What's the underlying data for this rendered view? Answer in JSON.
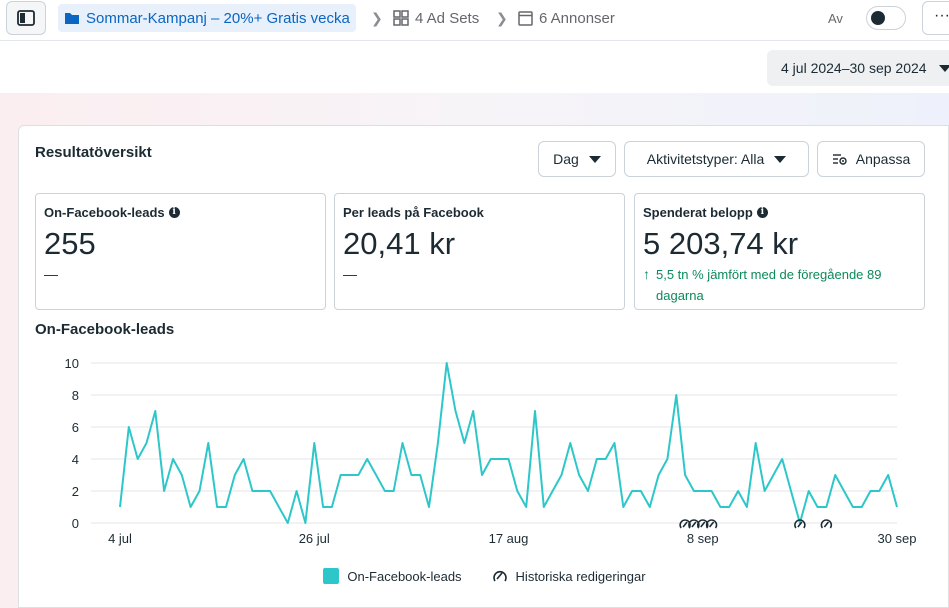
{
  "topbar": {
    "campaign": "Sommar-Kampanj – 20%+ Gratis vecka",
    "adsets": "4 Ad Sets",
    "ads": "6 Annonser",
    "toggle_label": "Av",
    "more": "···"
  },
  "date_range": "4 jul 2024–30 sep 2024",
  "card": {
    "title": "Resultatöversikt",
    "period_select": "Dag",
    "activity_select": "Aktivitetstyper: Alla",
    "customize": "Anpassa"
  },
  "metrics": [
    {
      "label": "On-Facebook-leads",
      "value": "255",
      "change": "—"
    },
    {
      "label": "Per leads på Facebook",
      "value": "20,41 kr",
      "change": "—"
    },
    {
      "label": "Spenderat belopp",
      "value": "5 203,74 kr",
      "change": "5,5 tn % jämfört med de föregående 89 dagarna"
    }
  ],
  "chart_data": {
    "type": "line",
    "title": "On-Facebook-leads",
    "x_ticks": [
      "4 jul",
      "26 jul",
      "17 aug",
      "8 sep",
      "30 sep"
    ],
    "y_ticks": [
      "0",
      "2",
      "4",
      "6",
      "8",
      "10"
    ],
    "ylim": [
      0,
      10
    ],
    "grid": true,
    "series": [
      {
        "name": "On-Facebook-leads",
        "color": "#2ec7c9",
        "values": [
          1,
          6,
          4,
          5,
          7,
          2,
          4,
          3,
          1,
          2,
          5,
          1,
          1,
          3,
          4,
          2,
          2,
          2,
          1,
          0,
          2,
          0,
          5,
          1,
          1,
          3,
          3,
          3,
          4,
          3,
          2,
          2,
          5,
          3,
          3,
          1,
          5,
          10,
          7,
          5,
          7,
          3,
          4,
          4,
          4,
          2,
          1,
          7,
          1,
          2,
          3,
          5,
          3,
          2,
          4,
          4,
          5,
          1,
          2,
          2,
          1,
          3,
          4,
          8,
          3,
          2,
          2,
          2,
          1,
          1,
          2,
          1,
          5,
          2,
          3,
          4,
          2,
          0,
          2,
          1,
          1,
          3,
          2,
          1,
          1,
          2,
          2,
          3,
          1
        ]
      }
    ],
    "legend": [
      "On-Facebook-leads",
      "Historiska redigeringar"
    ],
    "legend_position": "bottom",
    "history_edit_days": [
      64,
      65,
      66,
      67,
      77,
      80
    ]
  }
}
